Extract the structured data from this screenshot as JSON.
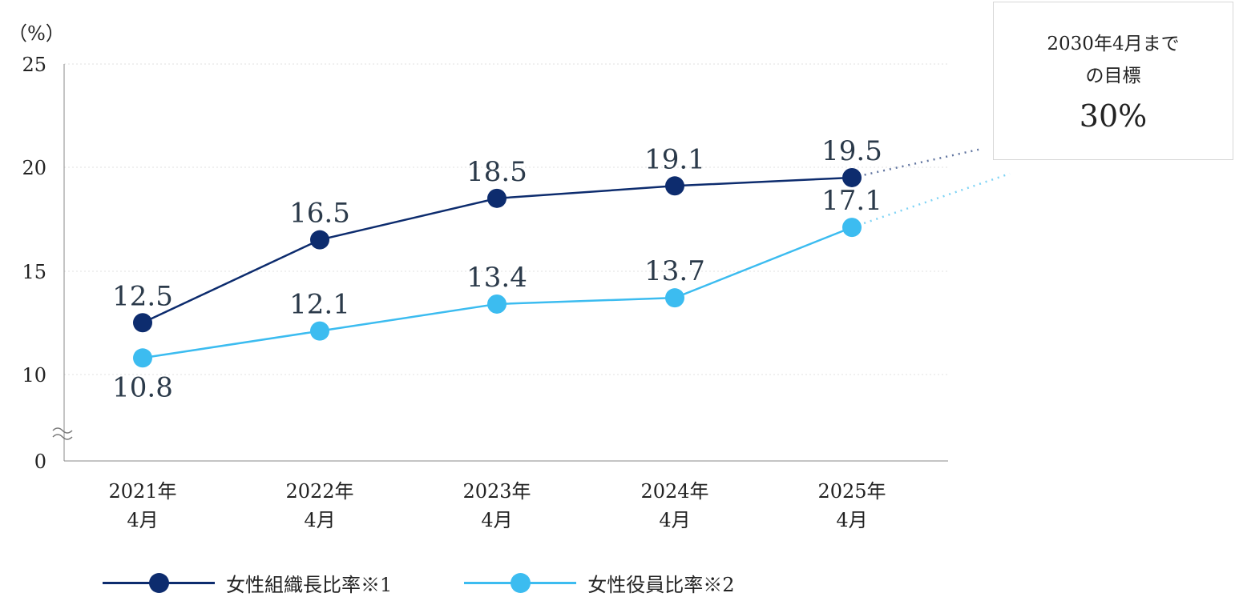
{
  "chart_data": {
    "type": "line",
    "unit_label": "（%）",
    "categories": [
      [
        "2021年",
        "4月"
      ],
      [
        "2022年",
        "4月"
      ],
      [
        "2023年",
        "4月"
      ],
      [
        "2024年",
        "4月"
      ],
      [
        "2025年",
        "4月"
      ]
    ],
    "y_ticks": [
      "25",
      "20",
      "15",
      "10",
      "0"
    ],
    "y_break": true,
    "grid": true,
    "series": [
      {
        "name": "女性組織長比率※1",
        "color": "#0d2c6e",
        "values": [
          12.5,
          16.5,
          18.5,
          19.1,
          19.5
        ],
        "labels": [
          "12.5",
          "16.5",
          "18.5",
          "19.1",
          "19.5"
        ]
      },
      {
        "name": "女性役員比率※2",
        "color": "#3cbcf0",
        "values": [
          10.8,
          12.1,
          13.4,
          13.7,
          17.1
        ],
        "labels": [
          "10.8",
          "12.1",
          "13.4",
          "13.7",
          "17.1"
        ]
      }
    ],
    "target": {
      "label": "2030年4月までの目標",
      "value": "30%"
    },
    "legend_position": "bottom"
  }
}
